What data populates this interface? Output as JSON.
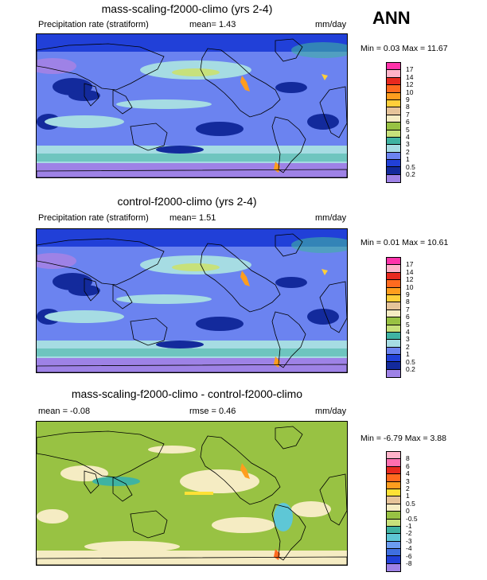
{
  "season": "ANN",
  "panels": [
    {
      "title": "mass-scaling-f2000-climo (yrs 2-4)",
      "left_label": "Precipitation rate (stratiform)",
      "mean_label": "mean=  1.43",
      "mid_label": "",
      "units": "mm/day",
      "minmax": "Min =  0.03 Max =  11.67",
      "colorbar": {
        "labels": [
          "17",
          "14",
          "12",
          "10",
          "9",
          "8",
          "7",
          "6",
          "5",
          "4",
          "3",
          "2",
          "1",
          "0.5",
          "0.2"
        ],
        "colors": [
          "#ff33aa",
          "#ffb3c9",
          "#e8291f",
          "#ff6a1f",
          "#ff9d1e",
          "#ffcf3a",
          "#e6c49a",
          "#f5ecc3",
          "#98c243",
          "#c7e17b",
          "#3fb3a2",
          "#a6dce3",
          "#6b83f0",
          "#2140d8",
          "#132a9c",
          "#9e82e6"
        ]
      },
      "style": "precip"
    },
    {
      "title": "control-f2000-climo (yrs 2-4)",
      "left_label": "Precipitation rate (stratiform)",
      "mean_label": "mean=  1.51",
      "mid_label": "",
      "units": "mm/day",
      "minmax": "Min =  0.01 Max =  10.61",
      "colorbar": {
        "labels": [
          "17",
          "14",
          "12",
          "10",
          "9",
          "8",
          "7",
          "6",
          "5",
          "4",
          "3",
          "2",
          "1",
          "0.5",
          "0.2"
        ],
        "colors": [
          "#ff33aa",
          "#ffb3c9",
          "#e8291f",
          "#ff6a1f",
          "#ff9d1e",
          "#ffcf3a",
          "#e6c49a",
          "#f5ecc3",
          "#98c243",
          "#c7e17b",
          "#3fb3a2",
          "#a6dce3",
          "#6b83f0",
          "#2140d8",
          "#132a9c",
          "#9e82e6"
        ]
      },
      "style": "precip"
    },
    {
      "title": "mass-scaling-f2000-climo - control-f2000-climo",
      "left_label": "mean =  -0.08",
      "mean_label": "",
      "mid_label": "rmse =  0.46",
      "units": "mm/day",
      "minmax": "Min =  -6.79 Max =  3.88",
      "colorbar": {
        "labels": [
          "8",
          "6",
          "4",
          "3",
          "2",
          "1",
          "0.5",
          "0",
          "-0.5",
          "-1",
          "-2",
          "-3",
          "-4",
          "-6",
          "-8"
        ],
        "colors": [
          "#ffb3c9",
          "#ff6fb0",
          "#e8291f",
          "#ff6a1f",
          "#ff9d1e",
          "#ffe135",
          "#e6c49a",
          "#f5ecc3",
          "#98c243",
          "#c7e17b",
          "#3fb3a2",
          "#5ec7d6",
          "#6b9cf0",
          "#3f6fe0",
          "#2140d8",
          "#9e82e6"
        ]
      },
      "style": "diff"
    }
  ]
}
